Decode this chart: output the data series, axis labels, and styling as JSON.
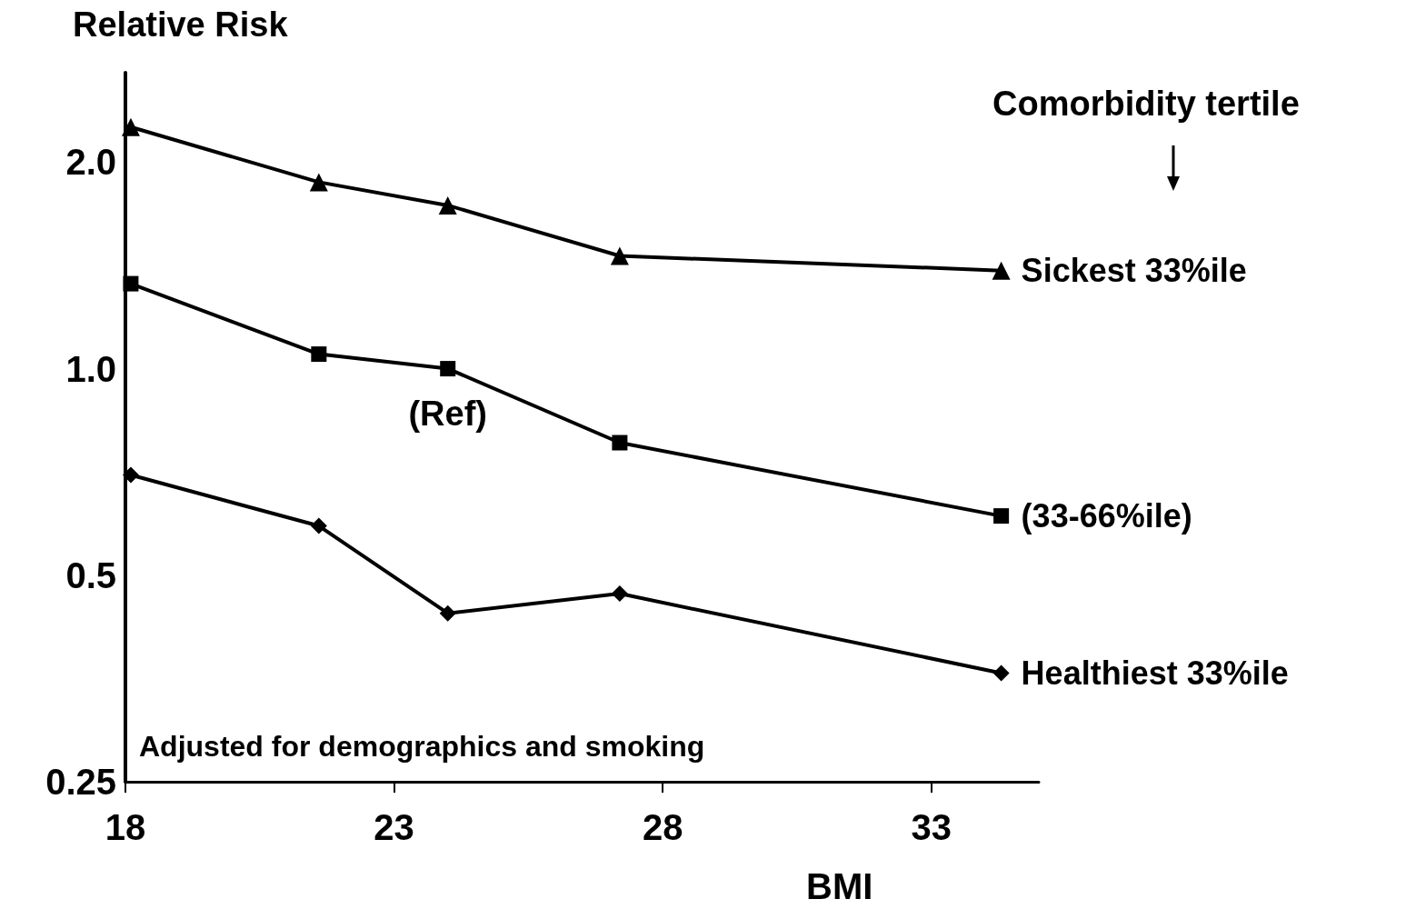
{
  "chart_data": {
    "type": "line",
    "xlabel": "BMI",
    "ylabel": "Relative Risk",
    "legend_title": "Comorbidity tertile",
    "log": "y",
    "grid": false,
    "legend": false,
    "xlim": [
      18,
      35
    ],
    "xticks": [
      18,
      23,
      28,
      33
    ],
    "ylim": [
      0.25,
      2.7
    ],
    "yticks": [
      {
        "value": 0.25,
        "label": "0.25"
      },
      {
        "value": 0.5,
        "label": "0.5"
      },
      {
        "value": 1,
        "label": "1.0"
      },
      {
        "value": 2,
        "label": "2.0"
      }
    ],
    "x": [
      18.1,
      21.6,
      24.0,
      27.2,
      34.3
    ],
    "series": [
      {
        "name": "Sickest 33%ile",
        "color": "#000000",
        "marker": "triangle",
        "values": [
          2.25,
          1.87,
          1.73,
          1.46,
          1.39
        ]
      },
      {
        "name": "(33-66%ile)",
        "color": "#000000",
        "marker": "square",
        "values": [
          1.33,
          1.05,
          1.0,
          0.78,
          0.61
        ]
      },
      {
        "name": "Healthiest 33%ile",
        "color": "#000000",
        "marker": "diamond",
        "values": [
          0.7,
          0.59,
          0.44,
          0.47,
          0.36
        ]
      }
    ],
    "annotations": [
      {
        "text": "(Ref)",
        "x": 24.0,
        "y": 1.0
      },
      "Adjusted for demographics and smoking"
    ]
  }
}
